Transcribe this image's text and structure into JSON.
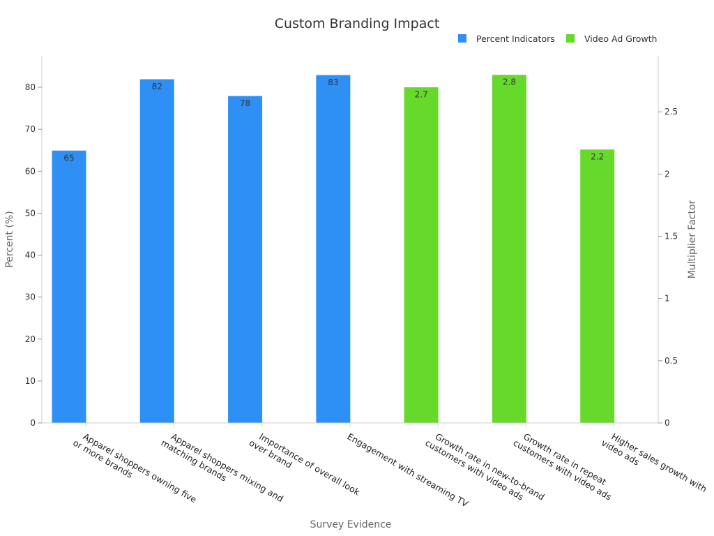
{
  "chart_data": {
    "type": "bar",
    "title": "Custom Branding Impact",
    "xlabel": "Survey Evidence",
    "ylabel_left": "Percent (%)",
    "ylabel_right": "Multiplier Factor",
    "categories": [
      [
        "Apparel shoppers owning five",
        "or more brands"
      ],
      [
        "Apparel shoppers mixing and",
        "matching brands"
      ],
      [
        "Importance of overall look",
        "over brand"
      ],
      [
        "Engagement with streaming TV"
      ],
      [
        "Growth rate in new-to-brand",
        "customers with video ads"
      ],
      [
        "Growth rate in repeat",
        "customers with video ads"
      ],
      [
        "Higher sales growth with",
        "video ads"
      ]
    ],
    "series": [
      {
        "name": "Percent Indicators",
        "axis": "left",
        "color": "#2e90f5",
        "values": [
          65,
          82,
          78,
          83,
          null,
          null,
          null
        ],
        "labels": [
          "65",
          "82",
          "78",
          "83",
          "",
          "",
          ""
        ]
      },
      {
        "name": "Video Ad Growth",
        "axis": "right",
        "color": "#66d92b",
        "values": [
          null,
          null,
          null,
          null,
          2.7,
          2.8,
          2.2
        ],
        "labels": [
          "",
          "",
          "",
          "",
          "2.7",
          "2.8",
          "2.2"
        ]
      }
    ],
    "ylim_left": [
      0,
      87.5
    ],
    "yticks_left": [
      "0",
      "10",
      "20",
      "30",
      "40",
      "50",
      "60",
      "70",
      "80"
    ],
    "ylim_right": [
      0,
      2.95
    ],
    "yticks_right": [
      "0",
      "0.5",
      "1",
      "1.5",
      "2",
      "2.5"
    ],
    "legend_position": "top-right",
    "grid": false
  }
}
